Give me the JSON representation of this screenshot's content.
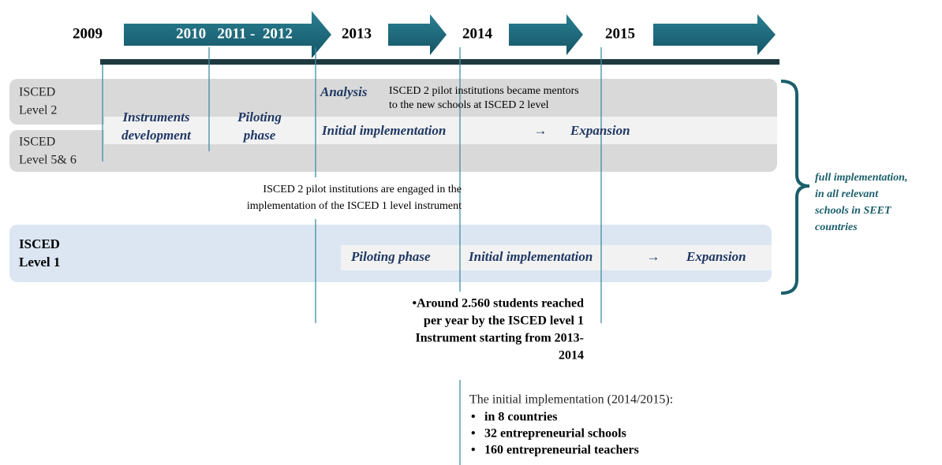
{
  "timeline": {
    "years": [
      "2009",
      "2013",
      "2014",
      "2015"
    ],
    "arrow_label": "2010   2011 -  2012"
  },
  "rows": [
    {
      "label_lines": [
        "ISCED",
        "Level 2"
      ]
    },
    {
      "label_lines": [
        "ISCED",
        "Level 5& 6"
      ]
    },
    {
      "label_lines": [
        "ISCED",
        "Level 1"
      ]
    }
  ],
  "upper_phases": {
    "instruments": [
      "Instruments",
      "development"
    ],
    "piloting": [
      "Piloting",
      "phase"
    ],
    "analysis": "Analysis",
    "mentors": [
      "ISCED 2 pilot institutions became mentors",
      "to the new schools at ISCED 2 level"
    ],
    "initial": "Initial implementation",
    "arrow": "→",
    "expansion": "Expansion"
  },
  "engaged_note": [
    "ISCED 2 pilot institutions are engaged in the",
    "implementation of the ISCED 1 level instrument"
  ],
  "level1_phases": {
    "piloting": "Piloting phase",
    "initial": "Initial implementation",
    "arrow": "→",
    "expansion": "Expansion"
  },
  "side_note": [
    "full implementation,",
    "in all relevant",
    "schools in SEET",
    "countries"
  ],
  "students_note": [
    "•Around 2.560 students reached",
    "per year by the ISCED level 1",
    "Instrument starting from 2013-",
    "2014"
  ],
  "initial_list": {
    "title": "The initial implementation (2014/2015):",
    "items": [
      "in 8 countries",
      "32 entrepreneurial schools",
      "160 entrepreneurial teachers"
    ]
  }
}
